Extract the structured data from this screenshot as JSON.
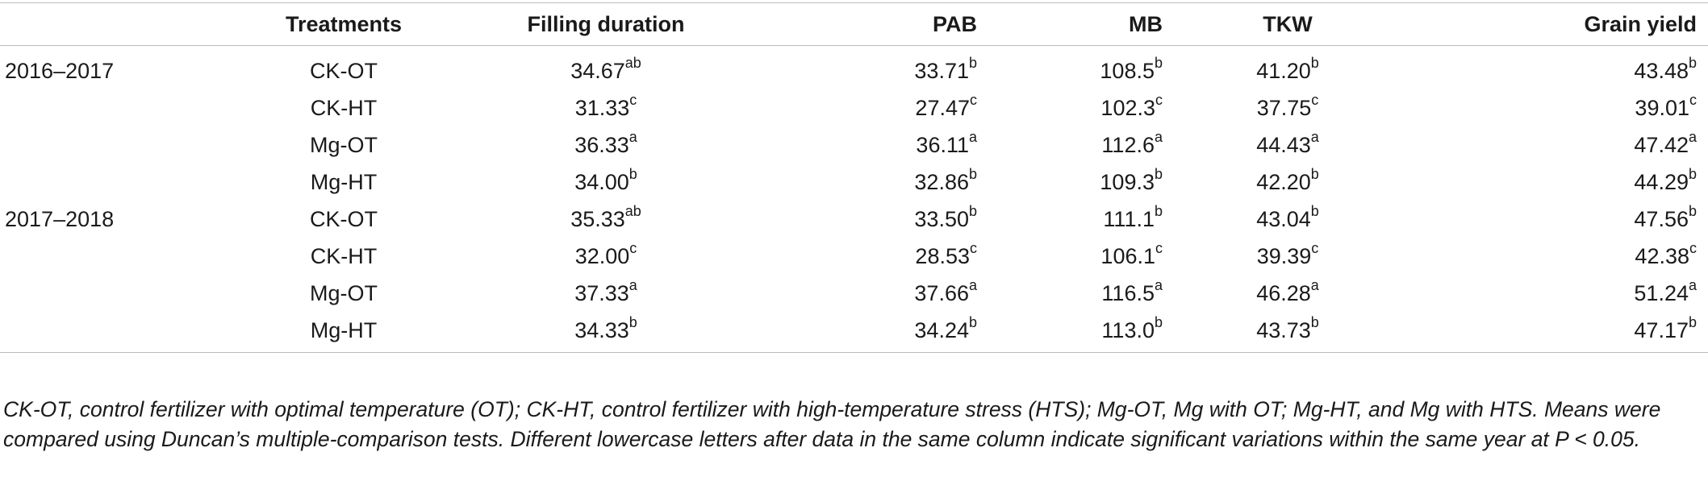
{
  "columns": [
    "",
    "Treatments",
    "Filling duration",
    "PAB",
    "MB",
    "TKW",
    "Grain yield"
  ],
  "rows": [
    {
      "year": "2016–2017",
      "treatment": "CK-OT",
      "cells": [
        [
          "34.67",
          "ab"
        ],
        [
          "33.71",
          "b"
        ],
        [
          "108.5",
          "b"
        ],
        [
          "41.20",
          "b"
        ],
        [
          "43.48",
          "b"
        ]
      ]
    },
    {
      "year": "",
      "treatment": "CK-HT",
      "cells": [
        [
          "31.33",
          "c"
        ],
        [
          "27.47",
          "c"
        ],
        [
          "102.3",
          "c"
        ],
        [
          "37.75",
          "c"
        ],
        [
          "39.01",
          "c"
        ]
      ]
    },
    {
      "year": "",
      "treatment": "Mg-OT",
      "cells": [
        [
          "36.33",
          "a"
        ],
        [
          "36.11",
          "a"
        ],
        [
          "112.6",
          "a"
        ],
        [
          "44.43",
          "a"
        ],
        [
          "47.42",
          "a"
        ]
      ]
    },
    {
      "year": "",
      "treatment": "Mg-HT",
      "cells": [
        [
          "34.00",
          "b"
        ],
        [
          "32.86",
          "b"
        ],
        [
          "109.3",
          "b"
        ],
        [
          "42.20",
          "b"
        ],
        [
          "44.29",
          "b"
        ]
      ]
    },
    {
      "year": "2017–2018",
      "treatment": "CK-OT",
      "cells": [
        [
          "35.33",
          "ab"
        ],
        [
          "33.50",
          "b"
        ],
        [
          "111.1",
          "b"
        ],
        [
          "43.04",
          "b"
        ],
        [
          "47.56",
          "b"
        ]
      ]
    },
    {
      "year": "",
      "treatment": "CK-HT",
      "cells": [
        [
          "32.00",
          "c"
        ],
        [
          "28.53",
          "c"
        ],
        [
          "106.1",
          "c"
        ],
        [
          "39.39",
          "c"
        ],
        [
          "42.38",
          "c"
        ]
      ]
    },
    {
      "year": "",
      "treatment": "Mg-OT",
      "cells": [
        [
          "37.33",
          "a"
        ],
        [
          "37.66",
          "a"
        ],
        [
          "116.5",
          "a"
        ],
        [
          "46.28",
          "a"
        ],
        [
          "51.24",
          "a"
        ]
      ]
    },
    {
      "year": "",
      "treatment": "Mg-HT",
      "cells": [
        [
          "34.33",
          "b"
        ],
        [
          "34.24",
          "b"
        ],
        [
          "113.0",
          "b"
        ],
        [
          "43.73",
          "b"
        ],
        [
          "47.17",
          "b"
        ]
      ]
    }
  ],
  "footnote": "CK-OT, control fertilizer with optimal temperature (OT); CK-HT, control fertilizer with high-temperature stress (HTS); Mg-OT, Mg with OT; Mg-HT, and Mg with HTS. Means were compared using Duncan’s multiple-comparison tests. Different lowercase letters after data in the same column indicate significant variations within the same year at P < 0.05."
}
